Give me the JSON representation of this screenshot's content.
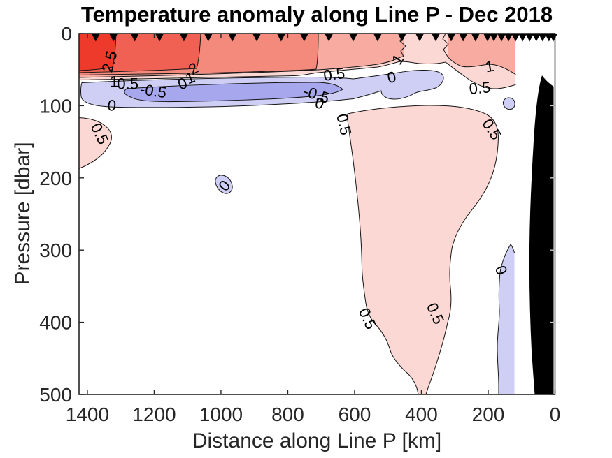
{
  "chart_data": {
    "type": "filled_contour",
    "title": "Temperature anomaly along Line P - Dec 2018",
    "xlabel": "Distance along Line P [km]",
    "ylabel": "Pressure [dbar]",
    "x_axis": {
      "min": 0,
      "max": 1425,
      "reversed": true,
      "ticks": [
        1400,
        1200,
        1000,
        800,
        600,
        400,
        200,
        0
      ]
    },
    "y_axis": {
      "min": 0,
      "max": 500,
      "direction": "down",
      "ticks": [
        0,
        100,
        200,
        300,
        400,
        500
      ]
    },
    "contour_levels": [
      -1,
      -0.5,
      0,
      0.5,
      1,
      1.5,
      2,
      2.5,
      3
    ],
    "contour_interval": 0.5,
    "fill_colors": {
      "red_2p5_3": "#ee3a2b",
      "red_2_2p5": "#f16153",
      "red_1p5_2": "#f48a7c",
      "red_1_1p5": "#f8aca1",
      "pink_0p5_1": "#fbd8d3",
      "blue_m0p5_0": "#cfcff6",
      "blue_m1_m0p5": "#a7a7ed",
      "bathymetry": "#000000",
      "background": "#ffffff"
    },
    "contour_line_color": "#141414",
    "axis_color": "#262626",
    "stations_km": [
      1375,
      1322,
      1258,
      1184,
      1111,
      1038,
      966,
      893,
      820,
      751,
      677,
      604,
      531,
      458,
      405,
      357,
      311,
      275,
      238,
      202,
      183,
      160,
      139,
      118,
      97,
      76,
      56,
      37,
      18,
      5
    ],
    "contour_labels": [
      {
        "text": "2.5",
        "km": 1333,
        "dbar": 39,
        "rot": -75
      },
      {
        "text": "2",
        "km": 1082,
        "dbar": 49,
        "rot": -30
      },
      {
        "text": "1",
        "km": 1320,
        "dbar": 67,
        "rot": 0
      },
      {
        "text": "0.5",
        "km": 1279,
        "dbar": 70,
        "rot": 0
      },
      {
        "text": "-0.5",
        "km": 1203,
        "dbar": 80,
        "rot": 8
      },
      {
        "text": "0",
        "km": 1115,
        "dbar": 70,
        "rot": -22
      },
      {
        "text": "1",
        "km": 1092,
        "dbar": 62,
        "rot": -22
      },
      {
        "text": "0",
        "km": 1327,
        "dbar": 100,
        "rot": 6
      },
      {
        "text": "0.5",
        "km": 661,
        "dbar": 57,
        "rot": -8
      },
      {
        "text": "-0.5",
        "km": 715,
        "dbar": 85,
        "rot": 18
      },
      {
        "text": "0",
        "km": 705,
        "dbar": 97,
        "rot": 18
      },
      {
        "text": "1",
        "km": 470,
        "dbar": 36,
        "rot": -55
      },
      {
        "text": "0",
        "km": 489,
        "dbar": 61,
        "rot": -12
      },
      {
        "text": "1",
        "km": 196,
        "dbar": 46,
        "rot": -10
      },
      {
        "text": "0.5",
        "km": 225,
        "dbar": 76,
        "rot": -5
      },
      {
        "text": "0.5",
        "km": 633,
        "dbar": 126,
        "rot": 77
      },
      {
        "text": "0.5",
        "km": 190,
        "dbar": 133,
        "rot": 56
      },
      {
        "text": "0.5",
        "km": 1364,
        "dbar": 139,
        "rot": 64
      },
      {
        "text": "0",
        "km": 989,
        "dbar": 211,
        "rot": -50
      },
      {
        "text": "0.5",
        "km": 562,
        "dbar": 395,
        "rot": 66
      },
      {
        "text": "0.5",
        "km": 359,
        "dbar": 388,
        "rot": 66
      },
      {
        "text": "0",
        "km": 162,
        "dbar": 328,
        "rot": 70
      }
    ],
    "features": [
      "Warm surface layer (0-60 dbar) exceeding +2.5 degC at the offshore end (~1400 km)",
      "Subsurface cool band (-0.5 to -1 degC) at 60-100 dbar from ~1350 km to ~470 km",
      "Warm anomaly tongue (+0.5 to +1 degC) near 650-350 km reaching 500 dbar",
      "Weak cool strip (0 to -0.5 degC) near 160-120 km below ~350 dbar",
      "Black bathymetry wedge at the coastal end (0-60 km) below ~110 dbar",
      "Inverted black triangles along the top mark station positions"
    ]
  }
}
